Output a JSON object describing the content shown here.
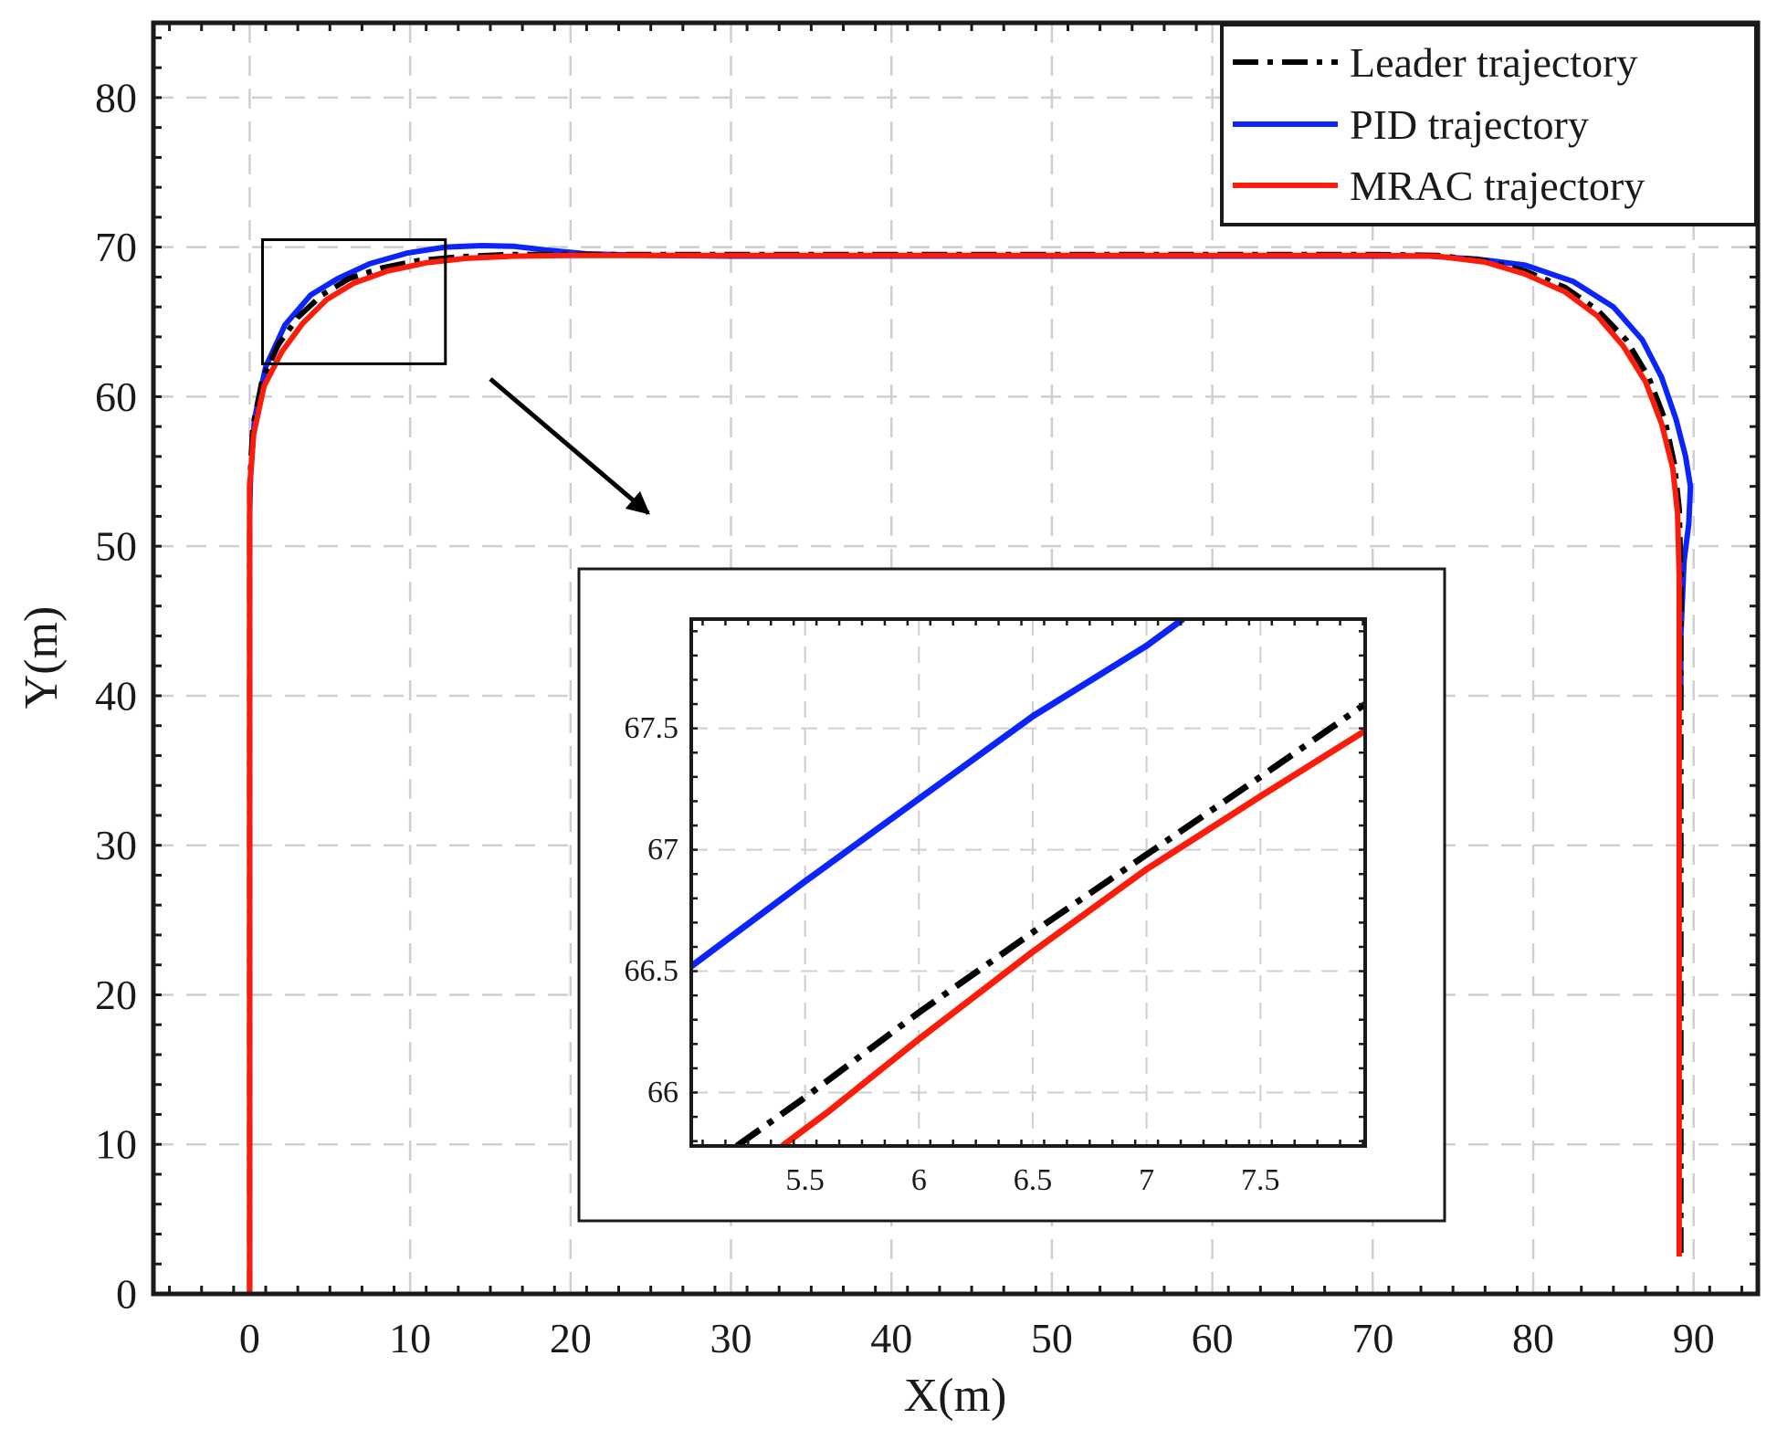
{
  "chart_data": {
    "type": "line",
    "xlabel": "X(m)",
    "ylabel": "Y(m)",
    "xlim": [
      -6,
      94
    ],
    "ylim": [
      0,
      85
    ],
    "xticks": [
      0,
      10,
      20,
      30,
      40,
      50,
      60,
      70,
      80,
      90
    ],
    "yticks": [
      0,
      10,
      20,
      30,
      40,
      50,
      60,
      70,
      80
    ],
    "xtick_labels": [
      "0",
      "10",
      "20",
      "30",
      "40",
      "50",
      "60",
      "70",
      "80",
      "90"
    ],
    "ytick_labels": [
      "0",
      "10",
      "20",
      "30",
      "40",
      "50",
      "60",
      "70",
      "80"
    ],
    "grid": true,
    "legend_position": "top-right",
    "series": [
      {
        "name": "Leader trajectory",
        "color": "#000000",
        "style": "dash-dot",
        "x": [
          0,
          0,
          0,
          0.2,
          0.8,
          1.8,
          3.0,
          4.5,
          6.2,
          8.2,
          10.5,
          13.0,
          16.0,
          20,
          30,
          40,
          50,
          60,
          70,
          74.0,
          77.0,
          79.5,
          82.0,
          84.0,
          85.8,
          87.2,
          88.2,
          88.8,
          89.1,
          89.2,
          89.2,
          89.2,
          89.2
        ],
        "y": [
          0,
          30,
          54,
          58,
          61.2,
          63.5,
          65.3,
          66.8,
          67.9,
          68.6,
          69.1,
          69.35,
          69.5,
          69.5,
          69.5,
          69.5,
          69.5,
          69.5,
          69.5,
          69.45,
          69.1,
          68.4,
          67.3,
          65.8,
          63.8,
          61.3,
          58.5,
          55.5,
          52.5,
          48,
          30,
          10,
          2.5
        ]
      },
      {
        "name": "PID trajectory",
        "color": "#0b24fb",
        "style": "solid",
        "x": [
          0,
          0,
          0,
          0.05,
          0.3,
          1.0,
          2.2,
          3.8,
          5.5,
          7.5,
          9.8,
          12.2,
          14.5,
          16.5,
          18.5,
          21,
          25,
          30,
          40,
          50,
          60,
          70,
          73.5,
          76.5,
          79.5,
          82.5,
          85.0,
          86.8,
          88.0,
          88.9,
          89.5,
          89.8,
          89.7,
          89.4,
          89.2,
          89.2
        ],
        "y": [
          0,
          30,
          52,
          54.5,
          58.5,
          62.0,
          64.8,
          66.8,
          67.9,
          68.9,
          69.6,
          70.0,
          70.1,
          70.05,
          69.8,
          69.55,
          69.45,
          69.4,
          69.4,
          69.4,
          69.4,
          69.4,
          69.4,
          69.2,
          68.8,
          67.7,
          66.0,
          63.8,
          61.3,
          58.5,
          56.0,
          54.0,
          51.5,
          49.0,
          44.0,
          40
        ]
      },
      {
        "name": "MRAC trajectory",
        "color": "#fb1c0b",
        "style": "solid",
        "x": [
          0,
          0,
          0,
          0.25,
          0.9,
          2.0,
          3.3,
          4.8,
          6.5,
          8.6,
          11.0,
          13.5,
          16.5,
          20,
          30,
          40,
          50,
          60,
          70,
          74.0,
          77.0,
          79.5,
          82.0,
          84.0,
          85.6,
          87.0,
          88.0,
          88.7,
          89.0,
          89.1,
          89.1,
          89.1,
          89.1
        ],
        "y": [
          0,
          30,
          54,
          57.5,
          60.7,
          63.0,
          64.9,
          66.5,
          67.6,
          68.4,
          68.95,
          69.25,
          69.4,
          69.45,
          69.45,
          69.45,
          69.45,
          69.45,
          69.45,
          69.4,
          69.0,
          68.2,
          67.0,
          65.4,
          63.4,
          61.0,
          58.2,
          55.2,
          52.2,
          48,
          30,
          10,
          2.5
        ]
      }
    ],
    "zoom_box": {
      "xlim": [
        0.8,
        12.2
      ],
      "ylim": [
        62.2,
        70.5
      ]
    },
    "inset": {
      "xlim": [
        5.0,
        7.96
      ],
      "ylim": [
        65.78,
        67.95
      ],
      "xticks": [
        5.5,
        6,
        6.5,
        7,
        7.5
      ],
      "yticks": [
        66,
        66.5,
        67,
        67.5
      ],
      "xtick_labels": [
        "5.5",
        "6",
        "6.5",
        "7",
        "7.5"
      ],
      "ytick_labels": [
        "66",
        "66.5",
        "67",
        "67.5"
      ],
      "series": [
        {
          "name": "PID trajectory",
          "color": "#0b24fb",
          "style": "solid",
          "x": [
            5.0,
            5.5,
            6.0,
            6.5,
            7.0,
            7.16
          ],
          "y": [
            66.52,
            66.87,
            67.21,
            67.55,
            67.84,
            67.95
          ]
        },
        {
          "name": "Leader trajectory",
          "color": "#000000",
          "style": "dash-dot",
          "x": [
            5.2,
            5.5,
            6.0,
            6.5,
            7.0,
            7.5,
            7.96
          ],
          "y": [
            65.78,
            65.98,
            66.33,
            66.66,
            66.98,
            67.3,
            67.6
          ]
        },
        {
          "name": "MRAC trajectory",
          "color": "#fb1c0b",
          "style": "solid",
          "x": [
            5.4,
            5.6,
            6.0,
            6.5,
            7.0,
            7.5,
            7.96
          ],
          "y": [
            65.78,
            65.92,
            66.22,
            66.58,
            66.92,
            67.22,
            67.49
          ]
        }
      ]
    }
  }
}
